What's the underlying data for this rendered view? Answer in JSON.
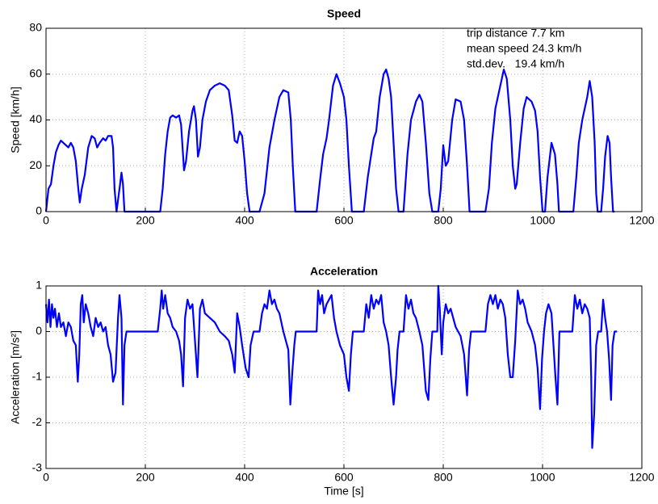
{
  "chart_data": [
    {
      "type": "line",
      "title": "Speed",
      "y_label": "Speed [km/h]",
      "annotations": [
        "trip distance 7.7 km",
        "mean speed 24.3 km/h",
        "std.dev.   19.4 km/h"
      ],
      "xlim": [
        0,
        1200
      ],
      "xticks": [
        0,
        200,
        400,
        600,
        800,
        1000,
        1200
      ],
      "ylim": [
        0,
        80
      ],
      "yticks": [
        0,
        20,
        40,
        60,
        80
      ],
      "grid": true,
      "series": [
        {
          "name": "Speed",
          "color": "#0000ff",
          "x": [
            0,
            5,
            10,
            15,
            20,
            25,
            30,
            35,
            40,
            45,
            50,
            55,
            60,
            65,
            68,
            72,
            78,
            85,
            92,
            98,
            103,
            108,
            115,
            120,
            125,
            132,
            135,
            138,
            142,
            148,
            152,
            155,
            158,
            230,
            235,
            240,
            245,
            250,
            255,
            262,
            268,
            272,
            278,
            282,
            288,
            295,
            298,
            302,
            306,
            310,
            315,
            322,
            330,
            340,
            350,
            360,
            368,
            375,
            380,
            385,
            390,
            395,
            400,
            405,
            410,
            430,
            440,
            450,
            460,
            470,
            478,
            488,
            493,
            497,
            502,
            545,
            552,
            558,
            565,
            570,
            578,
            585,
            592,
            600,
            605,
            610,
            616,
            640,
            648,
            655,
            660,
            665,
            672,
            680,
            685,
            690,
            695,
            700,
            705,
            710,
            720,
            728,
            735,
            745,
            752,
            758,
            765,
            772,
            778,
            790,
            795,
            800,
            805,
            810,
            818,
            825,
            835,
            842,
            848,
            853,
            885,
            892,
            898,
            905,
            912,
            918,
            922,
            928,
            935,
            940,
            945,
            948,
            955,
            962,
            968,
            978,
            985,
            990,
            995,
            1000,
            1005,
            1010,
            1018,
            1025,
            1030,
            1033,
            1062,
            1068,
            1073,
            1080,
            1085,
            1090,
            1095,
            1100,
            1105,
            1108,
            1111,
            1118,
            1122,
            1126,
            1131,
            1135,
            1138,
            1142,
            1145
          ],
          "values": [
            0,
            10,
            12,
            20,
            26,
            29,
            31,
            30,
            29,
            28,
            30,
            28,
            22,
            10,
            4,
            10,
            16,
            28,
            33,
            32,
            28,
            30,
            32,
            31,
            33,
            33,
            28,
            10,
            0,
            10,
            17,
            12,
            0,
            0,
            10,
            25,
            35,
            41,
            42,
            41,
            42,
            38,
            18,
            22,
            35,
            44,
            46,
            40,
            24,
            28,
            40,
            48,
            53,
            55,
            56,
            55,
            53,
            42,
            31,
            30,
            35,
            33,
            22,
            8,
            0,
            0,
            8,
            28,
            40,
            50,
            53,
            52,
            40,
            20,
            0,
            0,
            14,
            25,
            32,
            40,
            55,
            60,
            56,
            50,
            40,
            20,
            0,
            0,
            15,
            25,
            32,
            35,
            50,
            60,
            62,
            58,
            50,
            30,
            10,
            0,
            0,
            25,
            40,
            48,
            51,
            48,
            30,
            8,
            0,
            0,
            10,
            29,
            20,
            22,
            40,
            49,
            48,
            40,
            20,
            0,
            0,
            10,
            30,
            45,
            52,
            58,
            62,
            58,
            40,
            20,
            10,
            12,
            30,
            45,
            50,
            48,
            44,
            35,
            15,
            0,
            0,
            15,
            30,
            25,
            12,
            0,
            0,
            15,
            30,
            40,
            45,
            50,
            57,
            50,
            30,
            8,
            0,
            0,
            10,
            24,
            33,
            30,
            15,
            0,
            0
          ]
        }
      ]
    },
    {
      "type": "line",
      "title": "Acceleration",
      "y_label": "Acceleration [m/s²]",
      "x_label": "Time [s]",
      "xlim": [
        0,
        1200
      ],
      "xticks": [
        0,
        200,
        400,
        600,
        800,
        1000,
        1200
      ],
      "ylim": [
        -3,
        1
      ],
      "yticks": [
        -3,
        -2,
        -1,
        0,
        1
      ],
      "grid": true,
      "series": [
        {
          "name": "Acceleration",
          "color": "#0000ff",
          "x": [
            0,
            3,
            6,
            9,
            12,
            15,
            18,
            22,
            26,
            30,
            35,
            40,
            45,
            50,
            55,
            60,
            64,
            67,
            70,
            73,
            76,
            80,
            85,
            90,
            95,
            100,
            105,
            110,
            115,
            120,
            125,
            130,
            135,
            140,
            145,
            148,
            152,
            155,
            158,
            162,
            225,
            230,
            233,
            236,
            240,
            245,
            250,
            255,
            262,
            268,
            272,
            276,
            280,
            285,
            290,
            295,
            300,
            305,
            310,
            315,
            320,
            330,
            340,
            350,
            360,
            368,
            375,
            380,
            385,
            390,
            395,
            402,
            408,
            412,
            418,
            430,
            435,
            440,
            445,
            450,
            455,
            460,
            465,
            470,
            478,
            488,
            492,
            496,
            500,
            503,
            545,
            548,
            552,
            556,
            560,
            565,
            570,
            575,
            580,
            585,
            592,
            600,
            605,
            610,
            614,
            618,
            640,
            645,
            650,
            655,
            660,
            665,
            670,
            675,
            680,
            685,
            690,
            695,
            700,
            705,
            708,
            712,
            720,
            725,
            730,
            735,
            740,
            745,
            752,
            758,
            765,
            770,
            774,
            778,
            788,
            790,
            793,
            797,
            800,
            805,
            810,
            815,
            820,
            825,
            835,
            842,
            848,
            852,
            856,
            885,
            890,
            895,
            900,
            905,
            910,
            915,
            920,
            925,
            930,
            935,
            940,
            945,
            950,
            955,
            960,
            965,
            970,
            978,
            985,
            990,
            995,
            999,
            1003,
            1007,
            1012,
            1018,
            1022,
            1026,
            1030,
            1034,
            1060,
            1065,
            1070,
            1075,
            1080,
            1085,
            1090,
            1095,
            1098,
            1100,
            1104,
            1108,
            1112,
            1118,
            1122,
            1126,
            1130,
            1134,
            1138,
            1141,
            1145,
            1150
          ],
          "values": [
            0.6,
            0.2,
            0.7,
            0.1,
            0.6,
            0.3,
            0.5,
            0.1,
            0.4,
            0.1,
            0.2,
            -0.1,
            0.2,
            0.1,
            -0.2,
            -0.3,
            -1.1,
            -0.5,
            0.6,
            0.8,
            0.2,
            0.6,
            0.4,
            0.1,
            -0.1,
            0.3,
            0.1,
            0.2,
            0,
            0.1,
            -0.3,
            -0.5,
            -1.1,
            -0.9,
            0.3,
            0.8,
            0.3,
            -1.6,
            -0.3,
            0,
            0,
            0.5,
            0.9,
            0.5,
            0.8,
            0.4,
            0.3,
            0.1,
            0,
            -0.2,
            -0.5,
            -1.2,
            0.3,
            0.7,
            0.5,
            0.6,
            -0.2,
            -1.0,
            0.5,
            0.7,
            0.4,
            0.3,
            0.2,
            0,
            -0.1,
            -0.2,
            -0.5,
            -0.9,
            0.4,
            0.1,
            -0.3,
            -0.8,
            -1.0,
            -0.3,
            0,
            0,
            0.4,
            0.6,
            0.5,
            0.9,
            0.6,
            0.7,
            0.5,
            0.4,
            0,
            -0.4,
            -1.6,
            -0.9,
            -0.3,
            0,
            0,
            0.9,
            0.6,
            0.8,
            0.4,
            0.6,
            0.7,
            0.8,
            0.3,
            0,
            -0.3,
            -0.5,
            -1.0,
            -1.3,
            -0.5,
            0,
            0,
            0.6,
            0.3,
            0.8,
            0.5,
            0.7,
            0.6,
            0.8,
            0.2,
            0,
            -0.3,
            -1.0,
            -1.6,
            -1.0,
            -0.4,
            0,
            0,
            0.8,
            0.5,
            0.7,
            0.4,
            0.3,
            0,
            -0.3,
            -1.3,
            -1.5,
            -0.6,
            0,
            0,
            1.0,
            0.5,
            -0.5,
            0.2,
            0.6,
            0.4,
            0.5,
            0.3,
            0.1,
            -0.1,
            -0.5,
            -1.4,
            -0.4,
            0,
            0,
            0.6,
            0.8,
            0.6,
            0.8,
            0.5,
            0.7,
            0.6,
            0.3,
            -0.5,
            -1.0,
            -1.0,
            -0.2,
            0.9,
            0.6,
            0.7,
            0.5,
            0.2,
            0,
            -0.3,
            -0.8,
            -1.7,
            -0.6,
            0,
            0.4,
            0.6,
            0.4,
            -0.3,
            -1.0,
            -1.6,
            0,
            0,
            0.8,
            0.5,
            0.7,
            0.4,
            0.6,
            0.5,
            0.3,
            -1.0,
            -2.55,
            -1.8,
            -0.3,
            0,
            0,
            0.7,
            0.3,
            0,
            -0.6,
            -1.5,
            -0.3,
            0,
            0
          ]
        }
      ]
    }
  ]
}
